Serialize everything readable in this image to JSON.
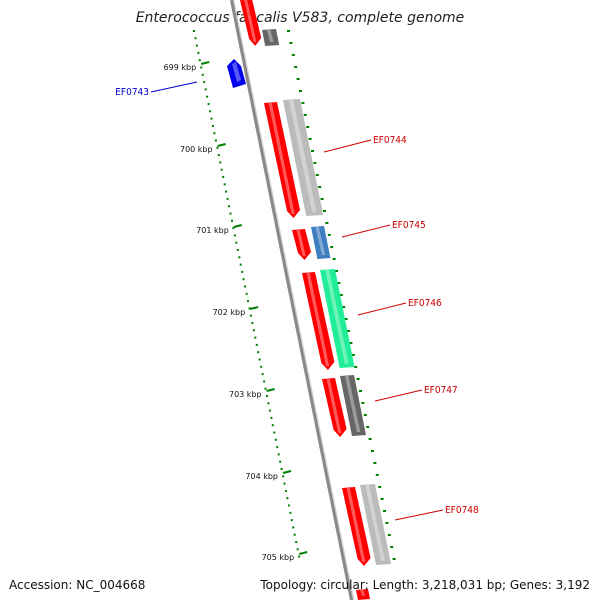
{
  "title": "Enterococcus faecalis V583, complete genome",
  "footer": {
    "accession": "Accession: NC_004668",
    "summary": "Topology: circular; Length: 3,218,031 bp; Genes: 3,192"
  },
  "ruler": {
    "tick_labels": [
      "699 kbp",
      "700 kbp",
      "701 kbp",
      "702 kbp",
      "703 kbp",
      "704 kbp",
      "705 kbp"
    ],
    "tick_color": "#008000"
  },
  "genes": [
    {
      "id": "EF0743",
      "color": "#0000cc",
      "strand": "minus"
    },
    {
      "id": "EF0744",
      "color": "#cc0000",
      "strand": "plus"
    },
    {
      "id": "EF0745",
      "color": "#cc0000",
      "strand": "plus"
    },
    {
      "id": "EF0746",
      "color": "#cc0000",
      "strand": "plus"
    },
    {
      "id": "EF0747",
      "color": "#cc0000",
      "strand": "plus"
    },
    {
      "id": "EF0748",
      "color": "#cc0000",
      "strand": "plus"
    }
  ],
  "colors": {
    "backbone": "#888888",
    "cds": "#ff0000",
    "cog_gray": "#bbbbbb",
    "cog_dark": "#666666",
    "cog_steel": "#3f7fbf",
    "cog_teal": "#22ee99",
    "blue_gene": "#0000ee"
  }
}
